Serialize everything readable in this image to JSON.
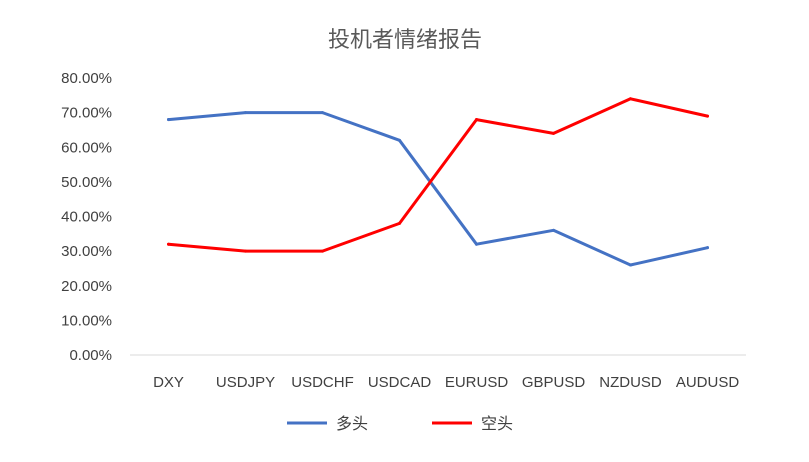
{
  "chart_data": {
    "type": "line",
    "title": "投机者情绪报告",
    "xlabel": "",
    "ylabel": "",
    "categories": [
      "DXY",
      "USDJPY",
      "USDCHF",
      "USDCAD",
      "EURUSD",
      "GBPUSD",
      "NZDUSD",
      "AUDUSD"
    ],
    "y_ticks": [
      "0.00%",
      "10.00%",
      "20.00%",
      "30.00%",
      "40.00%",
      "50.00%",
      "60.00%",
      "70.00%",
      "80.00%"
    ],
    "ylim": [
      0,
      80
    ],
    "grid": false,
    "legend_position": "bottom",
    "series": [
      {
        "name": "多头",
        "color": "#4472C4",
        "values": [
          68,
          70,
          70,
          62,
          32,
          36,
          26,
          31
        ]
      },
      {
        "name": "空头",
        "color": "#FF0000",
        "values": [
          32,
          30,
          30,
          38,
          68,
          64,
          74,
          69
        ]
      }
    ]
  }
}
